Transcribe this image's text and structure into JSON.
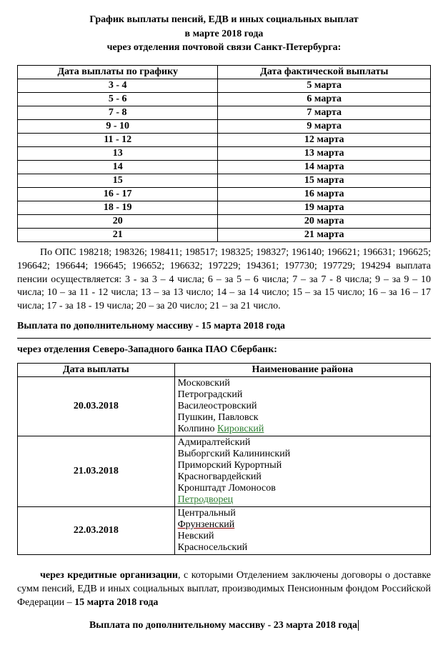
{
  "title_lines": [
    "График выплаты пенсий, ЕДВ и иных социальных  выплат",
    "в   марте  2018 года",
    "через отделения почтовой связи Санкт-Петербурга:"
  ],
  "table1": {
    "columns": [
      "Дата выплаты по графику",
      "Дата фактической выплаты"
    ],
    "rows": [
      [
        "3 - 4",
        "5 марта"
      ],
      [
        "5 - 6",
        "6 марта"
      ],
      [
        "7 - 8",
        "7 марта"
      ],
      [
        "9 - 10",
        "9 марта"
      ],
      [
        "11 - 12",
        "12 марта"
      ],
      [
        "13",
        "13 марта"
      ],
      [
        "14",
        "14 марта"
      ],
      [
        "15",
        "15 марта"
      ],
      [
        "16 - 17",
        "16 марта"
      ],
      [
        "18 - 19",
        "19 марта"
      ],
      [
        "20",
        "20 марта"
      ],
      [
        "21",
        "21 марта"
      ]
    ]
  },
  "para1": "По ОПС 198218; 198326; 198411; 198517; 198325; 198327; 196140; 196621; 196631; 196625; 196642; 196644; 196645; 196652; 196632; 197229; 194361; 197730; 197729; 194294 выплата пенсии осуществляется: 3 - за 3 – 4 числа; 6 – за 5 – 6 числа; 7 – за 7 - 8 числа; 9 – за 9 – 10 числа; 10 – за 11 - 12 числа; 13 – за 13 число; 14 – за 14 число; 15 – за 15 число; 16 – за 16 – 17 числа; 17 - за 18 - 19 числа; 20 – за 20 число; 21 – за 21 число.",
  "add_massiv_1_prefix": "Выплата по дополнительному массиву -   ",
  "add_massiv_1_date": "15   марта 2018 года",
  "section2_head": "через отделения  Северо-Западного банка  ПАО Сбербанк:",
  "table2": {
    "columns": [
      "Дата выплаты",
      "Наименование района"
    ],
    "rows": [
      {
        "date": "20.03.2018",
        "lines": [
          "Московский",
          "Петроградский",
          "Василеостровский",
          "Пушкин, Павловск"
        ],
        "last_line_pre": "Колпино       ",
        "last_line_green": "Кировский"
      },
      {
        "date": "21.03.2018",
        "lines": [
          "Адмиралтейский",
          "Выборгский        Калининский",
          "Приморский       Курортный",
          "Красногвардейский",
          "Кронштадт        Ломоносов"
        ],
        "last_line_pre": "",
        "last_line_green": "Петродворец"
      },
      {
        "date": "22.03.2018",
        "lines": [
          "Центральный"
        ],
        "underline_line": "Фрунзенский",
        "tail_lines": [
          "Невский",
          "Красносельский"
        ]
      }
    ]
  },
  "para2_pre": "через   кредитные   организации",
  "para2_rest": ",  с  которыми  Отделением  заключены  договоры  о доставке сумм пенсий, ЕДВ  и иных социальных выплат, производимых Пенсионным фондом Российской Федерации –   ",
  "para2_date": "15  марта 2018 года",
  "add_massiv_2_prefix": "Выплата по дополнительному  массиву - 23    марта 2018 года"
}
